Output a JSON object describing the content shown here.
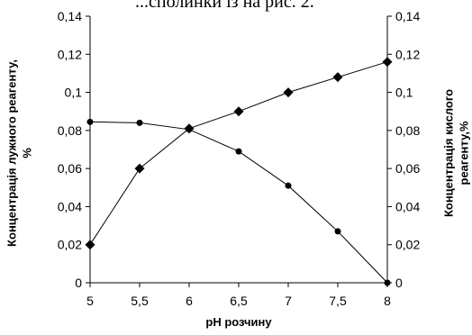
{
  "caption": "...сполинки із на рис. 2.",
  "chart_data": {
    "type": "line",
    "xlabel": "pH розчину",
    "ylabel_left": "Концентрація лужного реагенту, %",
    "ylabel_right": "Концентрація кислого реагенту,%",
    "x_ticks": [
      "5",
      "5,5",
      "6",
      "6,5",
      "7",
      "7,5",
      "8"
    ],
    "y_ticks": [
      "0",
      "0,02",
      "0,04",
      "0,06",
      "0,08",
      "0,1",
      "0,12",
      "0,14"
    ],
    "xlim": [
      5,
      8
    ],
    "ylim": [
      0,
      0.14
    ],
    "grid": false,
    "series": [
      {
        "marker": "diamond",
        "x": [
          5,
          5.5,
          6,
          6.5,
          7,
          7.5,
          8
        ],
        "y": [
          0.02,
          0.06,
          0.081,
          0.09,
          0.1,
          0.108,
          0.116
        ]
      },
      {
        "marker": "circle",
        "x": [
          5,
          5.5,
          6,
          6.5,
          7,
          7.5,
          8
        ],
        "y": [
          0.0845,
          0.084,
          0.0805,
          0.069,
          0.051,
          0.027,
          0.0
        ]
      }
    ],
    "colors": {
      "line": "#000000",
      "marker": "#000000"
    }
  }
}
